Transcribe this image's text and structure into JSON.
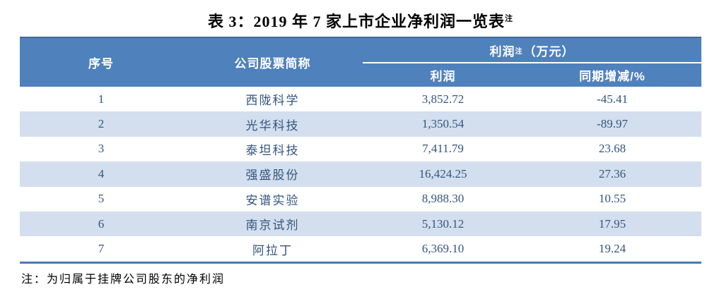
{
  "title": {
    "text": "表 3：2019 年 7 家上市企业净利润一览表",
    "sup": "注"
  },
  "table": {
    "header": {
      "col_serial": "序号",
      "col_company": "公司股票简称",
      "group_profit_main": "利润",
      "group_profit_sup": "注",
      "group_profit_unit": "（万元）",
      "sub_profit": "利润",
      "sub_change": "同期增减/%"
    },
    "rows": [
      {
        "serial": "1",
        "company": "西陇科学",
        "profit": "3,852.72",
        "change": "-45.41"
      },
      {
        "serial": "2",
        "company": "光华科技",
        "profit": "1,350.54",
        "change": "-89.97"
      },
      {
        "serial": "3",
        "company": "泰坦科技",
        "profit": "7,411.79",
        "change": "23.68"
      },
      {
        "serial": "4",
        "company": "强盛股份",
        "profit": "16,424.25",
        "change": "27.36"
      },
      {
        "serial": "5",
        "company": "安谱实验",
        "profit": "8,988.30",
        "change": "10.55"
      },
      {
        "serial": "6",
        "company": "南京试剂",
        "profit": "5,130.12",
        "change": "17.95"
      },
      {
        "serial": "7",
        "company": "阿拉丁",
        "profit": "6,369.10",
        "change": "19.24"
      }
    ]
  },
  "footnote": "注：为归属于挂牌公司股东的净利润",
  "colors": {
    "header_bg": "#4f81bd",
    "header_top": "#44689c",
    "stripe_bg": "#d3dfee",
    "data_text": "#33557e",
    "border_blue": "#4a7ab5"
  },
  "chart_data": {
    "type": "table",
    "title": "表 3：2019 年 7 家上市企业净利润一览表",
    "columns": [
      "序号",
      "公司股票简称",
      "利润（万元）",
      "同期增减/%"
    ],
    "categories": [
      "西陇科学",
      "光华科技",
      "泰坦科技",
      "强盛股份",
      "安谱实验",
      "南京试剂",
      "阿拉丁"
    ],
    "series": [
      {
        "name": "利润（万元）",
        "values": [
          3852.72,
          1350.54,
          7411.79,
          16424.25,
          8988.3,
          5130.12,
          6369.1
        ]
      },
      {
        "name": "同期增减/%",
        "values": [
          -45.41,
          -89.97,
          23.68,
          27.36,
          10.55,
          17.95,
          19.24
        ]
      }
    ],
    "note": "注：为归属于挂牌公司股东的净利润"
  }
}
